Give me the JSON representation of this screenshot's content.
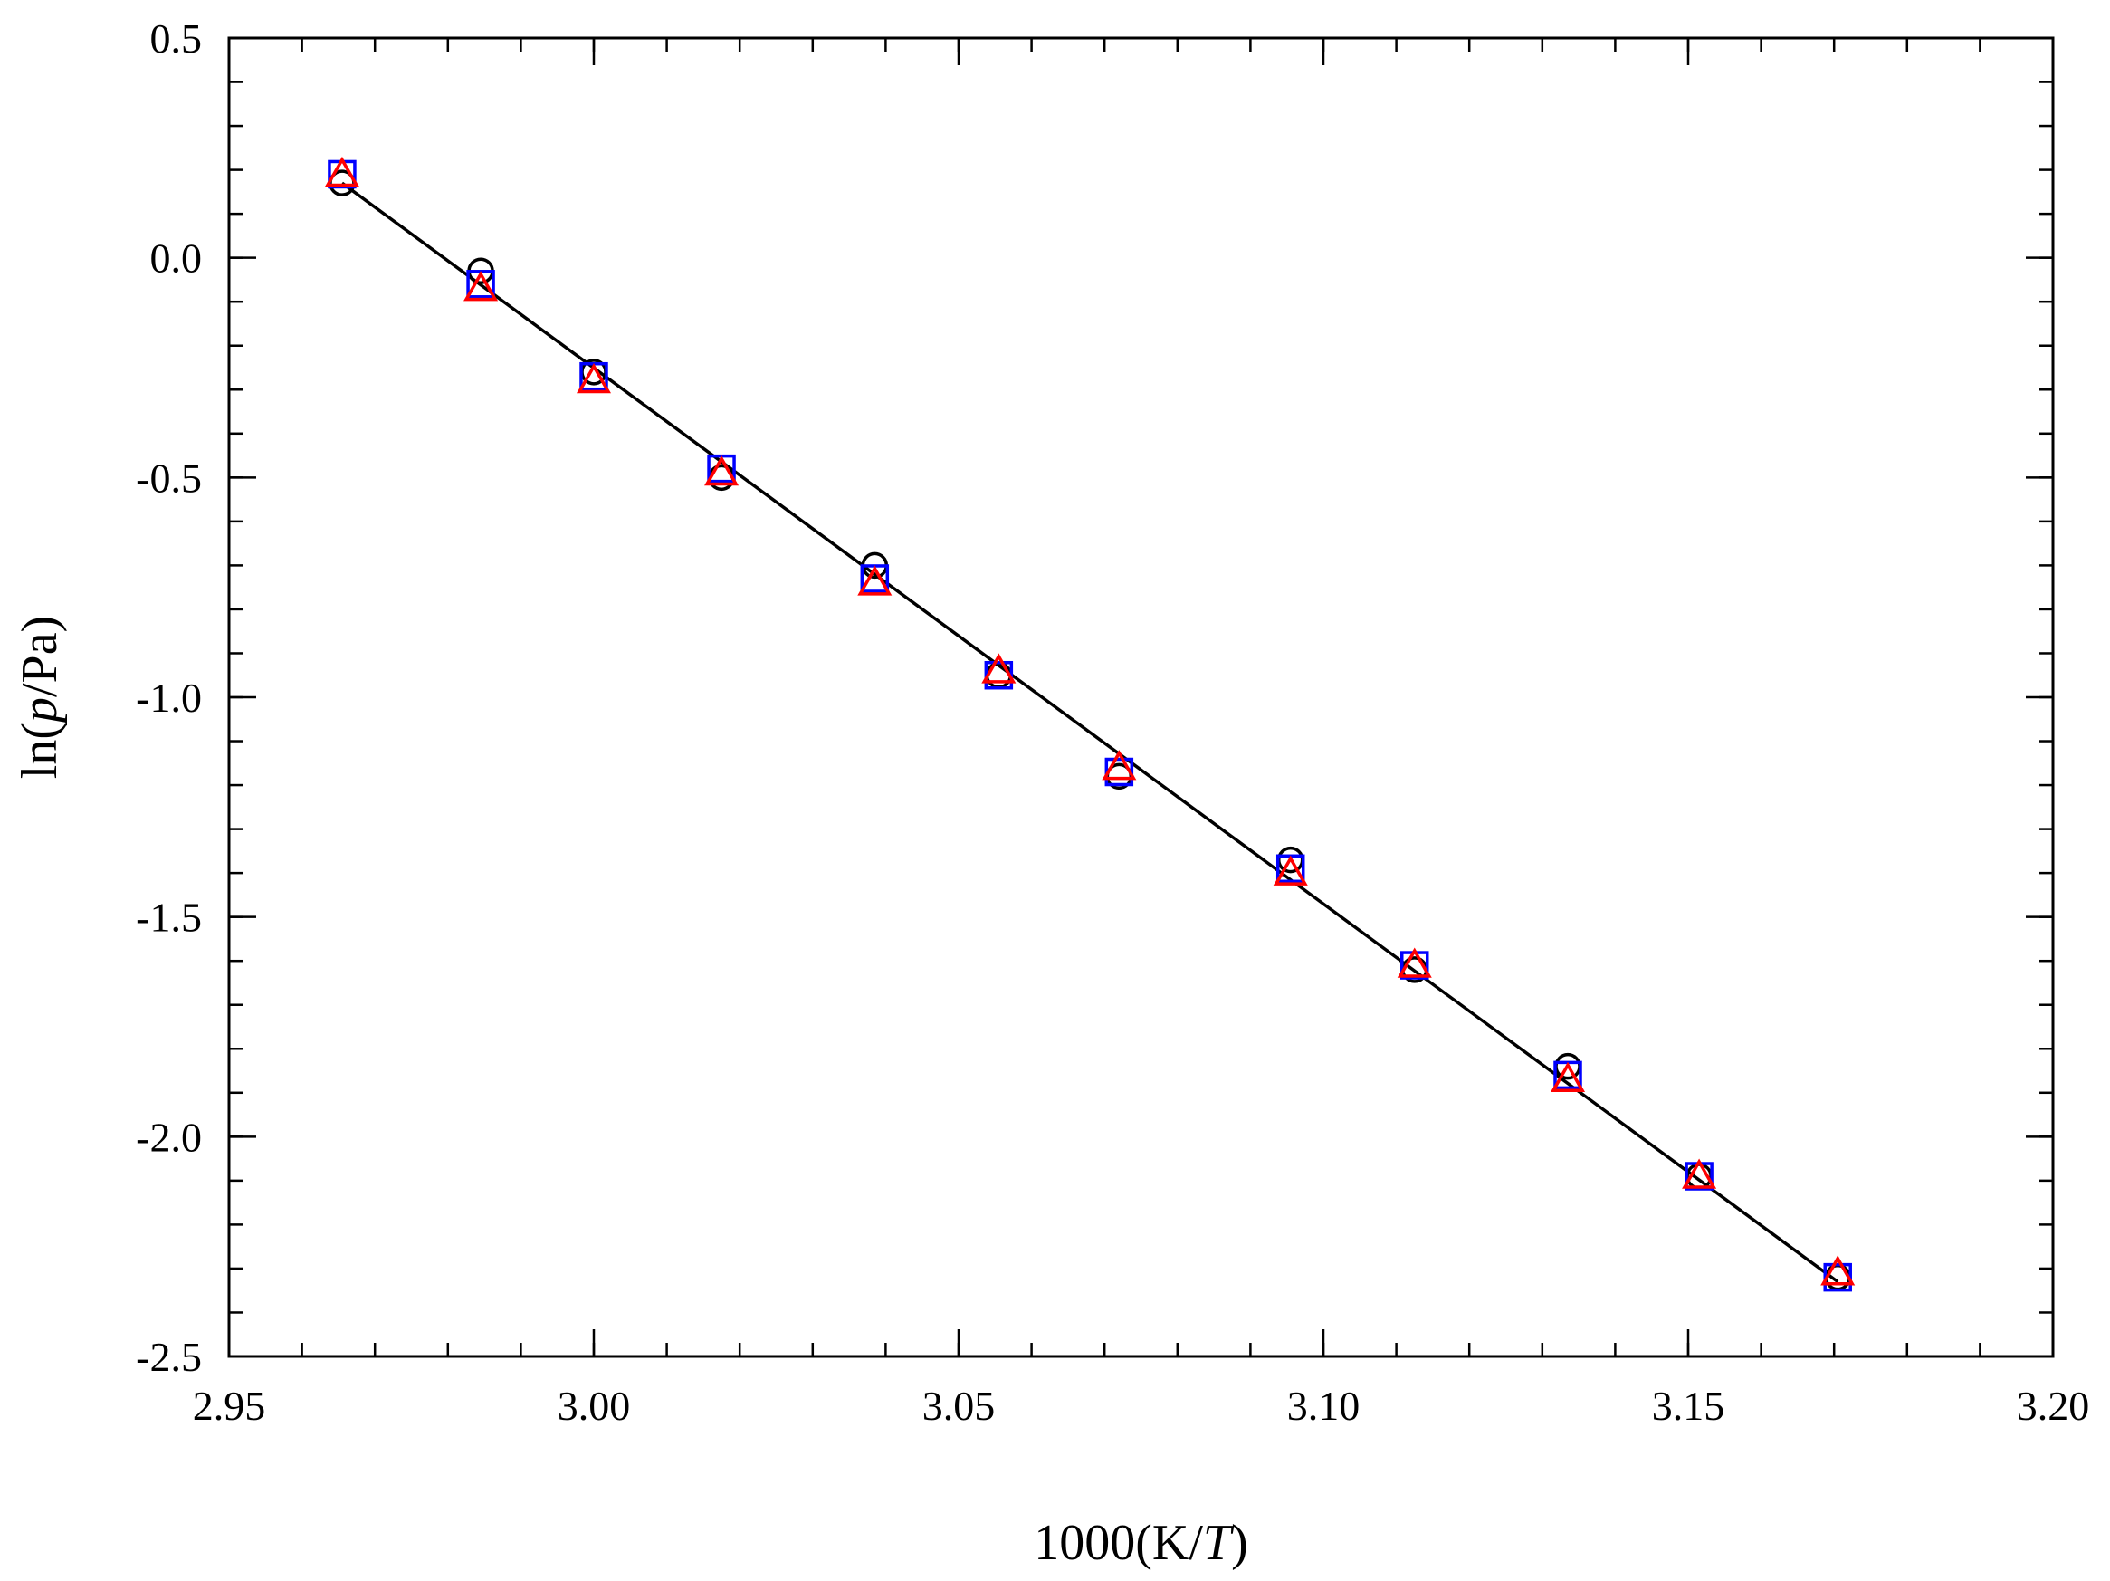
{
  "chart_data": {
    "type": "scatter",
    "xlabel": {
      "pre": "1000(K/",
      "italic": "T",
      "post": ")"
    },
    "ylabel": {
      "pre": "ln(",
      "italic": "p",
      "post": "/Pa)"
    },
    "xlim": [
      2.95,
      3.2
    ],
    "ylim": [
      -2.5,
      0.5
    ],
    "x_ticks": [
      2.95,
      3.0,
      3.05,
      3.1,
      3.15,
      3.2
    ],
    "x_tick_labels": [
      "2.95",
      "3.00",
      "3.05",
      "3.10",
      "3.15",
      "3.20"
    ],
    "x_minor_step": 0.01,
    "y_ticks": [
      0.5,
      0.0,
      -0.5,
      -1.0,
      -1.5,
      -2.0,
      -2.5
    ],
    "y_tick_labels": [
      "0.5",
      "0.0",
      "-0.5",
      "-1.0",
      "-1.5",
      "-2.0",
      "-2.5"
    ],
    "y_minor_step": 0.1,
    "grid": false,
    "series": [
      {
        "marker": "circle",
        "color": "#000000",
        "x": [
          2.9655,
          2.9845,
          3.0,
          3.0175,
          3.0385,
          3.0555,
          3.072,
          3.0955,
          3.1125,
          3.1335,
          3.1515,
          3.1705
        ],
        "y": [
          0.17,
          -0.03,
          -0.26,
          -0.5,
          -0.7,
          -0.95,
          -1.18,
          -1.37,
          -1.62,
          -1.84,
          -2.09,
          -2.32
        ]
      },
      {
        "marker": "square",
        "color": "#0000ff",
        "x": [
          2.9655,
          2.9845,
          3.0,
          3.0175,
          3.0385,
          3.0555,
          3.072,
          3.0955,
          3.1125,
          3.1335,
          3.1515,
          3.1705
        ],
        "y": [
          0.19,
          -0.06,
          -0.27,
          -0.48,
          -0.73,
          -0.95,
          -1.17,
          -1.39,
          -1.61,
          -1.86,
          -2.09,
          -2.32
        ]
      },
      {
        "marker": "triangle",
        "color": "#ff0000",
        "x": [
          2.9655,
          2.9845,
          3.0,
          3.0175,
          3.0385,
          3.0555,
          3.072,
          3.0955,
          3.1125,
          3.1335,
          3.1515,
          3.1705
        ],
        "y": [
          0.19,
          -0.07,
          -0.28,
          -0.49,
          -0.74,
          -0.94,
          -1.16,
          -1.4,
          -1.61,
          -1.87,
          -2.09,
          -2.31
        ]
      }
    ],
    "fit_line": {
      "color": "#000000",
      "x": [
        2.9655,
        3.1705
      ],
      "y": [
        0.17,
        -2.33
      ]
    }
  }
}
